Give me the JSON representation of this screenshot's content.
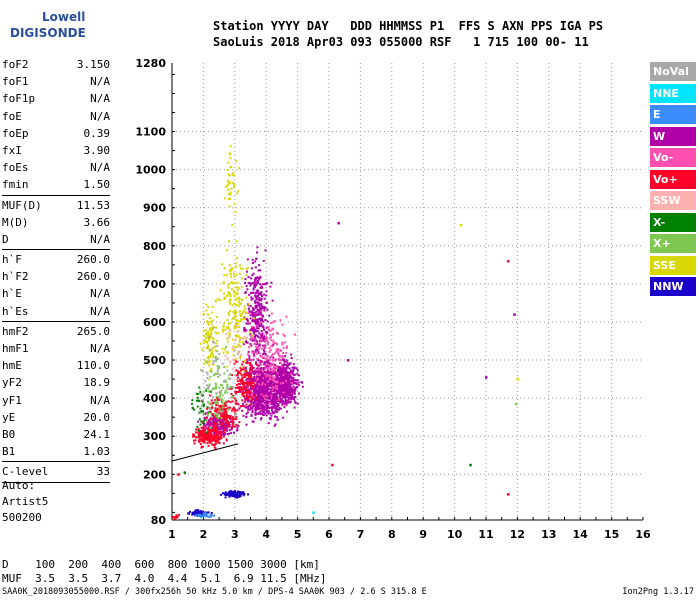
{
  "logo": {
    "line1": "Lowell",
    "line2": "DIGISONDE"
  },
  "header": {
    "labels": "Station YYYY DAY   DDD HHMMSS P1  FFS S AXN PPS IGA PS",
    "values": "SaoLuis 2018 Apr03 093 055000 RSF   1 715 100 00- 11"
  },
  "params_group1": [
    {
      "name": "foF2",
      "value": "3.150"
    },
    {
      "name": "foF1",
      "value": "N/A"
    },
    {
      "name": "foF1p",
      "value": "N/A"
    },
    {
      "name": "foE",
      "value": "N/A"
    },
    {
      "name": "foEp",
      "value": "0.39"
    },
    {
      "name": "fxI",
      "value": "3.90"
    },
    {
      "name": "foEs",
      "value": "N/A"
    },
    {
      "name": "fmin",
      "value": "1.50"
    }
  ],
  "params_group2": [
    {
      "name": "MUF(D)",
      "value": "11.53"
    },
    {
      "name": "M(D)",
      "value": "3.66"
    },
    {
      "name": "D",
      "value": "N/A"
    }
  ],
  "params_group3": [
    {
      "name": "h`F",
      "value": "260.0"
    },
    {
      "name": "h`F2",
      "value": "260.0"
    },
    {
      "name": "h`E",
      "value": "N/A"
    },
    {
      "name": "h`Es",
      "value": "N/A"
    }
  ],
  "params_group4": [
    {
      "name": "hmF2",
      "value": "265.0"
    },
    {
      "name": "hmF1",
      "value": "N/A"
    },
    {
      "name": "hmE",
      "value": "110.0"
    },
    {
      "name": "yF2",
      "value": "18.9"
    },
    {
      "name": "yF1",
      "value": "N/A"
    },
    {
      "name": "yE",
      "value": "20.0"
    },
    {
      "name": "B0",
      "value": "24.1"
    },
    {
      "name": "B1",
      "value": "1.03"
    }
  ],
  "clevel": {
    "name": "C-level",
    "value": "33"
  },
  "auto": {
    "line1": "Auto:",
    "line2": "Artist5",
    "line3": "500200"
  },
  "legend": [
    {
      "label": "NoVal",
      "bg": "#a8a8a8",
      "fg": "#ffffff"
    },
    {
      "label": "NNE",
      "bg": "#00e5ff",
      "fg": "#ffffff"
    },
    {
      "label": "E",
      "bg": "#3a8cff",
      "fg": "#ffffff"
    },
    {
      "label": "W",
      "bg": "#b000a8",
      "fg": "#ffffff"
    },
    {
      "label": "Vo-",
      "bg": "#ff4fb0",
      "fg": "#ffffff"
    },
    {
      "label": "Vo+",
      "bg": "#ff0028",
      "fg": "#ffffff"
    },
    {
      "label": "SSW",
      "bg": "#ffb0b0",
      "fg": "#ffffff"
    },
    {
      "label": "X-",
      "bg": "#008000",
      "fg": "#ffffff"
    },
    {
      "label": "X+",
      "bg": "#7cc850",
      "fg": "#ffffff"
    },
    {
      "label": "SSE",
      "bg": "#d8d800",
      "fg": "#ffffff"
    },
    {
      "label": "NNW",
      "bg": "#1a00c8",
      "fg": "#ffffff"
    }
  ],
  "bottom_table": {
    "d_row": "D    100  200  400  600  800 1000 1500 3000 [km]",
    "muf_row": "MUF  3.5  3.5  3.7  4.0  4.4  5.1  6.9 11.5 [MHz]"
  },
  "footer": "SAA0K_2018093055000.RSF / 300fx256h 50 kHz 5.0 km / DPS-4 SAA0K 903 / 2.6 S 315.8 E",
  "version": "Ion2Png 1.3.17",
  "chart_data": {
    "type": "scatter",
    "title": "",
    "xlabel": "",
    "ylabel": "",
    "xlim": [
      1,
      16
    ],
    "ylim": [
      80,
      1280
    ],
    "x_ticks": [
      1,
      2,
      3,
      4,
      5,
      6,
      7,
      8,
      9,
      10,
      11,
      12,
      13,
      14,
      15,
      16
    ],
    "y_ticks": [
      80,
      200,
      300,
      400,
      500,
      600,
      700,
      800,
      900,
      1000,
      1100,
      1280
    ],
    "grid": true,
    "profile_line": [
      [
        1.0,
        235
      ],
      [
        3.1,
        280
      ]
    ],
    "clusters": [
      {
        "color": "#b000a8",
        "xc": 3.9,
        "yc": 420,
        "xs": 0.6,
        "ys": 70,
        "n": 900
      },
      {
        "color": "#b000a8",
        "xc": 4.6,
        "yc": 440,
        "xs": 0.4,
        "ys": 60,
        "n": 500
      },
      {
        "color": "#b000a8",
        "xc": 3.7,
        "yc": 620,
        "xs": 0.35,
        "ys": 130,
        "n": 350
      },
      {
        "color": "#b000a8",
        "xc": 2.5,
        "yc": 330,
        "xs": 0.5,
        "ys": 30,
        "n": 250
      },
      {
        "color": "#ff0028",
        "xc": 2.2,
        "yc": 300,
        "xs": 0.45,
        "ys": 25,
        "n": 220
      },
      {
        "color": "#ff0028",
        "xc": 2.6,
        "yc": 360,
        "xs": 0.5,
        "ys": 40,
        "n": 180
      },
      {
        "color": "#ff0028",
        "xc": 3.3,
        "yc": 440,
        "xs": 0.35,
        "ys": 60,
        "n": 150
      },
      {
        "color": "#d8d800",
        "xc": 3.0,
        "yc": 640,
        "xs": 0.45,
        "ys": 140,
        "n": 180
      },
      {
        "color": "#d8d800",
        "xc": 2.2,
        "yc": 560,
        "xs": 0.25,
        "ys": 90,
        "n": 100
      },
      {
        "color": "#d8d800",
        "xc": 2.9,
        "yc": 960,
        "xs": 0.2,
        "ys": 80,
        "n": 40
      },
      {
        "color": "#ff4fb0",
        "xc": 4.1,
        "yc": 500,
        "xs": 0.6,
        "ys": 110,
        "n": 200
      },
      {
        "color": "#7cc850",
        "xc": 2.5,
        "yc": 420,
        "xs": 0.45,
        "ys": 90,
        "n": 90
      },
      {
        "color": "#008000",
        "xc": 1.9,
        "yc": 380,
        "xs": 0.3,
        "ys": 60,
        "n": 40
      },
      {
        "color": "#1a00c8",
        "xc": 3.0,
        "yc": 148,
        "xs": 0.35,
        "ys": 8,
        "n": 90
      },
      {
        "color": "#1a00c8",
        "xc": 1.9,
        "yc": 98,
        "xs": 0.3,
        "ys": 8,
        "n": 80
      },
      {
        "color": "#3a8cff",
        "xc": 2.0,
        "yc": 92,
        "xs": 0.4,
        "ys": 6,
        "n": 30
      },
      {
        "color": "#ff0028",
        "xc": 1.1,
        "yc": 88,
        "xs": 0.15,
        "ys": 5,
        "n": 15
      },
      {
        "color": "#a8a8a8",
        "xc": 2.5,
        "yc": 460,
        "xs": 0.6,
        "ys": 120,
        "n": 60
      },
      {
        "color": "#ffb0b0",
        "xc": 3.1,
        "yc": 520,
        "xs": 0.4,
        "ys": 80,
        "n": 30
      }
    ],
    "isolated_points": [
      {
        "x": 6.3,
        "y": 860,
        "color": "#b000a8"
      },
      {
        "x": 10.2,
        "y": 855,
        "color": "#d8d800"
      },
      {
        "x": 11.7,
        "y": 760,
        "color": "#ff0028"
      },
      {
        "x": 11.9,
        "y": 620,
        "color": "#b000a8"
      },
      {
        "x": 11.0,
        "y": 455,
        "color": "#b000a8"
      },
      {
        "x": 12.0,
        "y": 450,
        "color": "#d8d800"
      },
      {
        "x": 11.95,
        "y": 385,
        "color": "#7cc850"
      },
      {
        "x": 10.5,
        "y": 225,
        "color": "#008000"
      },
      {
        "x": 11.7,
        "y": 148,
        "color": "#ff0028"
      },
      {
        "x": 6.6,
        "y": 500,
        "color": "#b000a8"
      },
      {
        "x": 6.1,
        "y": 225,
        "color": "#ff0028"
      },
      {
        "x": 5.5,
        "y": 100,
        "color": "#00e5ff"
      },
      {
        "x": 1.2,
        "y": 200,
        "color": "#ff0028"
      },
      {
        "x": 1.4,
        "y": 205,
        "color": "#008000"
      }
    ]
  }
}
